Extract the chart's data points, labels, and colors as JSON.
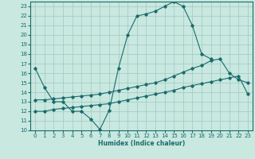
{
  "xlabel": "Humidex (Indice chaleur)",
  "xlim": [
    -0.5,
    23.5
  ],
  "ylim": [
    10,
    23.5
  ],
  "yticks": [
    10,
    11,
    12,
    13,
    14,
    15,
    16,
    17,
    18,
    19,
    20,
    21,
    22,
    23
  ],
  "xticks": [
    0,
    1,
    2,
    3,
    4,
    5,
    6,
    7,
    8,
    9,
    10,
    11,
    12,
    13,
    14,
    15,
    16,
    17,
    18,
    19,
    20,
    21,
    22,
    23
  ],
  "bg_color": "#c8e8e0",
  "line_color": "#1a6b6b",
  "grid_color": "#a0c8c0",
  "line1_x": [
    0,
    1,
    2,
    3,
    4,
    5,
    6,
    7,
    8,
    9,
    10,
    11,
    12,
    13,
    14,
    15,
    16,
    17,
    18,
    19,
    20,
    21,
    22,
    23
  ],
  "line1_y": [
    16.5,
    14.5,
    13.0,
    13.0,
    12.0,
    12.0,
    11.2,
    10.1,
    12.1,
    16.5,
    20.0,
    22.0,
    22.2,
    22.5,
    23.0,
    23.5,
    23.0,
    21.0,
    18.0,
    17.5,
    null,
    null,
    null,
    null
  ],
  "line2_x": [
    0,
    1,
    2,
    3,
    4,
    5,
    6,
    7,
    8,
    9,
    10,
    11,
    12,
    13,
    14,
    15,
    16,
    17,
    18,
    19,
    20,
    21,
    22,
    23
  ],
  "line2_y": [
    13.2,
    13.2,
    13.3,
    13.4,
    13.5,
    13.6,
    13.7,
    13.8,
    14.0,
    14.2,
    14.4,
    14.6,
    14.8,
    15.0,
    15.3,
    15.7,
    16.1,
    16.5,
    16.8,
    17.3,
    17.5,
    16.0,
    15.3,
    15.0
  ],
  "line3_x": [
    0,
    1,
    2,
    3,
    4,
    5,
    6,
    7,
    8,
    9,
    10,
    11,
    12,
    13,
    14,
    15,
    16,
    17,
    18,
    19,
    20,
    21,
    22,
    23
  ],
  "line3_y": [
    12.0,
    12.0,
    12.2,
    12.3,
    12.4,
    12.5,
    12.6,
    12.7,
    12.8,
    13.0,
    13.2,
    13.4,
    13.6,
    13.8,
    14.0,
    14.2,
    14.5,
    14.7,
    14.9,
    15.1,
    15.3,
    15.5,
    15.7,
    13.8
  ]
}
